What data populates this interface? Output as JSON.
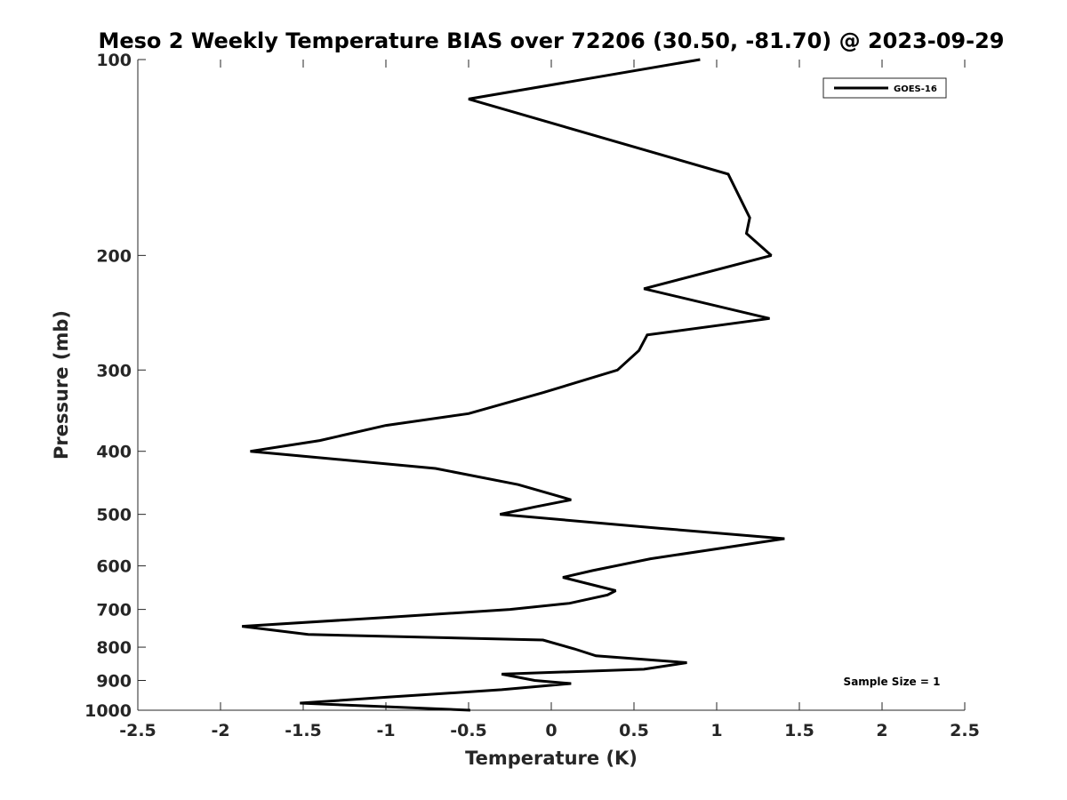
{
  "chart_data": {
    "type": "line",
    "title": "Meso 2 Weekly Temperature BIAS over 72206 (30.50, -81.70) @ 2023-09-29",
    "xlabel": "Temperature (K)",
    "ylabel": "Pressure (mb)",
    "xlim": [
      -2.5,
      2.5
    ],
    "ylim": [
      100,
      1000
    ],
    "y_scale": "log",
    "y_reversed": true,
    "x_ticks": [
      "-2.5",
      "-2",
      "-1.5",
      "-1",
      "-0.5",
      "0",
      "0.5",
      "1",
      "1.5",
      "2",
      "2.5"
    ],
    "x_tick_values": [
      -2.5,
      -2,
      -1.5,
      -1,
      -0.5,
      0,
      0.5,
      1,
      1.5,
      2,
      2.5
    ],
    "y_ticks": [
      "100",
      "200",
      "300",
      "400",
      "500",
      "600",
      "700",
      "800",
      "900",
      "1000"
    ],
    "y_tick_values": [
      100,
      200,
      300,
      400,
      500,
      600,
      700,
      800,
      900,
      1000
    ],
    "grid": false,
    "legend_position": "top-right",
    "annotation": "Sample Size = 1",
    "series": [
      {
        "name": "GOES-16",
        "color": "#000000",
        "points": [
          [
            0.9,
            100
          ],
          [
            -0.5,
            115
          ],
          [
            1.07,
            150
          ],
          [
            1.2,
            175
          ],
          [
            1.18,
            185
          ],
          [
            1.33,
            200
          ],
          [
            0.56,
            225
          ],
          [
            1.32,
            250
          ],
          [
            0.58,
            265
          ],
          [
            0.53,
            280
          ],
          [
            0.4,
            300
          ],
          [
            -0.05,
            325
          ],
          [
            -0.5,
            350
          ],
          [
            -1.0,
            365
          ],
          [
            -1.4,
            385
          ],
          [
            -1.82,
            400
          ],
          [
            -0.7,
            425
          ],
          [
            -0.2,
            450
          ],
          [
            0.12,
            475
          ],
          [
            -0.1,
            487
          ],
          [
            -0.31,
            500
          ],
          [
            0.65,
            525
          ],
          [
            1.41,
            545
          ],
          [
            1.0,
            565
          ],
          [
            0.6,
            585
          ],
          [
            0.25,
            610
          ],
          [
            0.07,
            625
          ],
          [
            0.39,
            655
          ],
          [
            0.34,
            665
          ],
          [
            0.11,
            685
          ],
          [
            -0.25,
            700
          ],
          [
            -1.0,
            720
          ],
          [
            -1.87,
            743
          ],
          [
            -1.47,
            765
          ],
          [
            -0.05,
            780
          ],
          [
            0.14,
            805
          ],
          [
            0.27,
            825
          ],
          [
            0.82,
            845
          ],
          [
            0.56,
            865
          ],
          [
            -0.3,
            880
          ],
          [
            -0.1,
            900
          ],
          [
            0.12,
            910
          ],
          [
            -0.3,
            930
          ],
          [
            -1.0,
            955
          ],
          [
            -1.52,
            975
          ],
          [
            -0.49,
            1000
          ]
        ]
      }
    ]
  }
}
